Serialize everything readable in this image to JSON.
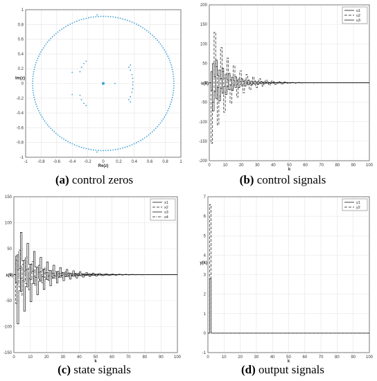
{
  "captions": [
    {
      "letter": "(a)",
      "text": " control zeros"
    },
    {
      "letter": "(b)",
      "text": " control signals"
    },
    {
      "letter": "(c)",
      "text": " state signals"
    },
    {
      "letter": "(d)",
      "text": " output signals"
    }
  ],
  "chart_data": [
    {
      "type": "scatter",
      "xlabel": "Re(z)",
      "ylabel": "Im(z)",
      "xlim": [
        -1,
        1
      ],
      "ylim": [
        -1,
        1
      ],
      "xticks": [
        "-1",
        "-0.8",
        "-0.6",
        "-0.4",
        "-0.2",
        "0",
        "0.2",
        "0.4",
        "0.6",
        "0.8",
        "1"
      ],
      "yticks": [
        "-1",
        "-0.8",
        "-0.6",
        "-0.4",
        "-0.2",
        "0",
        "0.2",
        "0.4",
        "0.6",
        "0.8",
        "1"
      ],
      "grid": true,
      "color": "#3a9fd6",
      "ring_radius": 0.91,
      "ring_count": 180,
      "points": [
        [
          0,
          0
        ],
        [
          0,
          0.01
        ],
        [
          0.15,
          0
        ],
        [
          -0.3,
          0.16
        ],
        [
          -0.28,
          0.22
        ],
        [
          -0.25,
          0.27
        ],
        [
          -0.22,
          0.3
        ],
        [
          -0.3,
          -0.16
        ],
        [
          -0.28,
          -0.22
        ],
        [
          -0.25,
          -0.27
        ],
        [
          -0.22,
          -0.3
        ],
        [
          0.33,
          0.22
        ],
        [
          0.35,
          0.18
        ],
        [
          0.37,
          0.12
        ],
        [
          0.38,
          0.07
        ],
        [
          0.38,
          0.02
        ],
        [
          0.33,
          -0.22
        ],
        [
          0.35,
          -0.18
        ],
        [
          0.37,
          -0.12
        ],
        [
          0.38,
          -0.07
        ],
        [
          0.38,
          -0.02
        ],
        [
          -0.4,
          0.15
        ],
        [
          -0.4,
          -0.15
        ],
        [
          0.35,
          0.25
        ],
        [
          0.35,
          -0.25
        ],
        [
          -0.08,
          0.93
        ],
        [
          -0.08,
          -0.93
        ]
      ]
    },
    {
      "type": "line",
      "step": true,
      "xlabel": "k",
      "ylabel": "u(k)",
      "xlim": [
        0,
        100
      ],
      "ylim": [
        -200,
        200
      ],
      "xticks": [
        "0",
        "10",
        "20",
        "30",
        "40",
        "50",
        "60",
        "70",
        "80",
        "90",
        "100"
      ],
      "yticks": [
        "-200",
        "-150",
        "-100",
        "-50",
        "0",
        "50",
        "100",
        "150",
        "200"
      ],
      "grid": true,
      "legend_position": "top-right",
      "series": [
        {
          "name": "u1",
          "style": "solid",
          "amp": 90,
          "decay": 0.11,
          "period": 4,
          "phase": 0
        },
        {
          "name": "u2",
          "style": "dashed",
          "amp": 170,
          "decay": 0.09,
          "period": 4,
          "phase": 1
        },
        {
          "name": "u3",
          "style": "solid",
          "amp": 60,
          "decay": 0.1,
          "period": 4,
          "phase": 2
        }
      ]
    },
    {
      "type": "line",
      "step": true,
      "xlabel": "k",
      "ylabel": "x(k)",
      "xlim": [
        0,
        100
      ],
      "ylim": [
        -150,
        150
      ],
      "xticks": [
        "0",
        "10",
        "20",
        "30",
        "40",
        "50",
        "60",
        "70",
        "80",
        "90",
        "100"
      ],
      "yticks": [
        "-150",
        "-100",
        "-50",
        "0",
        "50",
        "100",
        "150"
      ],
      "grid": true,
      "legend_position": "top-right",
      "series": [
        {
          "name": "x1",
          "style": "solid",
          "amp": 110,
          "decay": 0.075,
          "period": 4,
          "phase": 0
        },
        {
          "name": "x2",
          "style": "dashed",
          "amp": 60,
          "decay": 0.08,
          "period": 4,
          "phase": 1
        },
        {
          "name": "x3",
          "style": "solid",
          "amp": 45,
          "decay": 0.08,
          "period": 4,
          "phase": 2
        },
        {
          "name": "x4",
          "style": "dashdot",
          "amp": 30,
          "decay": 0.08,
          "period": 4,
          "phase": 3
        }
      ]
    },
    {
      "type": "line",
      "step": true,
      "xlabel": "k",
      "ylabel": "y(k)",
      "xlim": [
        0,
        100
      ],
      "ylim": [
        -1,
        7
      ],
      "xticks": [
        "0",
        "10",
        "20",
        "30",
        "40",
        "50",
        "60",
        "70",
        "80",
        "90",
        "100"
      ],
      "yticks": [
        "-1",
        "0",
        "1",
        "2",
        "3",
        "4",
        "5",
        "6",
        "7"
      ],
      "grid": true,
      "legend_position": "top-right",
      "series": [
        {
          "name": "y1",
          "style": "solid",
          "impulse": 2.8
        },
        {
          "name": "y2",
          "style": "dashed",
          "impulse": 6.6
        }
      ]
    }
  ]
}
